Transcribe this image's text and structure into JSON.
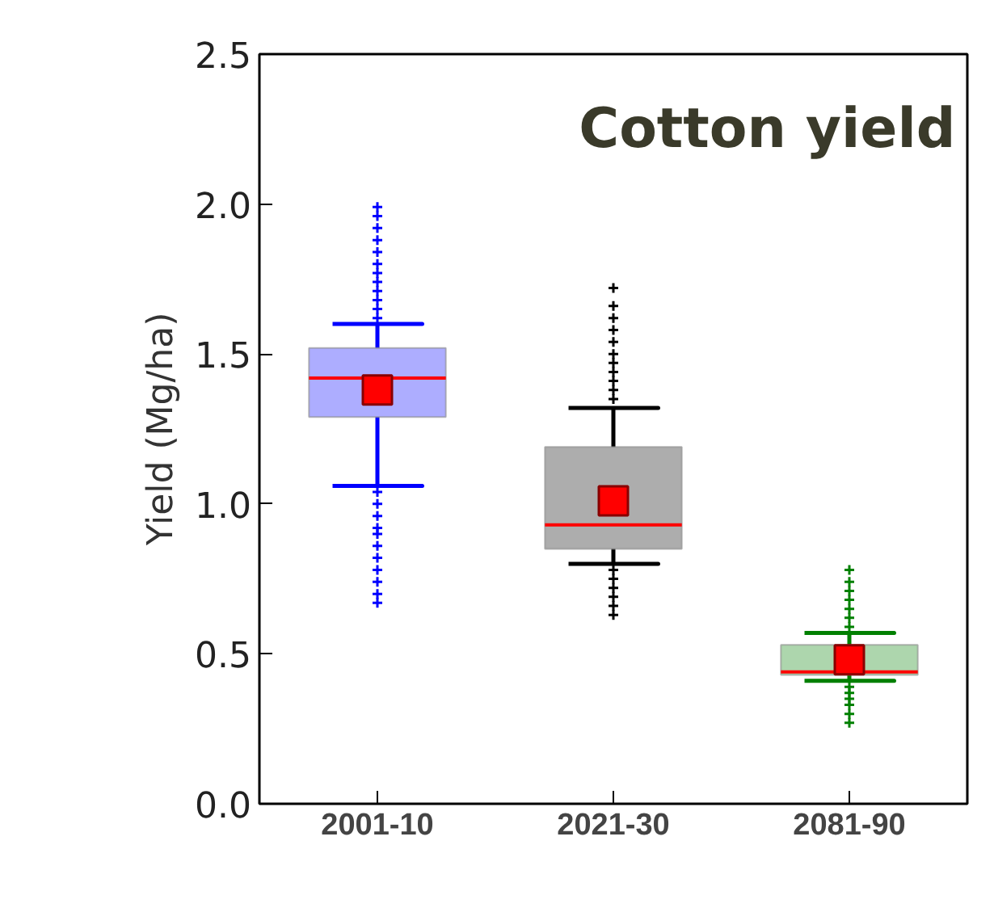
{
  "chart_data": {
    "type": "box",
    "title": "Cotton yield",
    "ylabel": "Yield (Mg/ha)",
    "categories": [
      "2001-10",
      "2021-30",
      "2081-90"
    ],
    "ylim": [
      0.0,
      2.5
    ],
    "yticks": [
      {
        "value": 0,
        "label": "0.0"
      },
      0.5,
      {
        "value": 1,
        "label": "1.0"
      },
      1.5,
      {
        "value": 2,
        "label": "2.0"
      },
      2.5
    ],
    "grid": false,
    "series": [
      {
        "color": "#0000ff",
        "boxes": [
          {
            "low": 1.06,
            "q1": 1.29,
            "median": 1.42,
            "q3": 1.52,
            "high": 1.6,
            "mean": 1.38,
            "outliers": [
              1.62,
              1.65,
              1.68,
              1.71,
              1.74,
              1.77,
              1.8,
              1.84,
              1.88,
              1.92,
              1.96,
              1.99,
              1.04,
              1.0,
              0.96,
              0.92,
              0.9,
              0.86,
              0.82,
              0.78,
              0.74,
              0.7,
              0.67
            ]
          },
          null,
          null
        ]
      },
      {
        "color": "#000000",
        "boxes": [
          null,
          {
            "low": 0.8,
            "q1": 0.85,
            "median": 0.93,
            "q3": 1.19,
            "high": 1.32,
            "mean": 1.01,
            "outliers": [
              1.35,
              1.38,
              1.41,
              1.44,
              1.47,
              1.5,
              1.54,
              1.58,
              1.62,
              1.66,
              1.72,
              0.78,
              0.75,
              0.72,
              0.69,
              0.66,
              0.63
            ]
          },
          null
        ]
      },
      {
        "color": "#008000",
        "boxes": [
          null,
          null,
          {
            "low": 0.41,
            "q1": 0.43,
            "median": 0.44,
            "q3": 0.53,
            "high": 0.57,
            "mean": 0.48,
            "outliers": [
              0.59,
              0.62,
              0.65,
              0.68,
              0.71,
              0.74,
              0.78,
              0.39,
              0.37,
              0.35,
              0.33,
              0.3,
              0.27
            ]
          }
        ]
      }
    ]
  }
}
